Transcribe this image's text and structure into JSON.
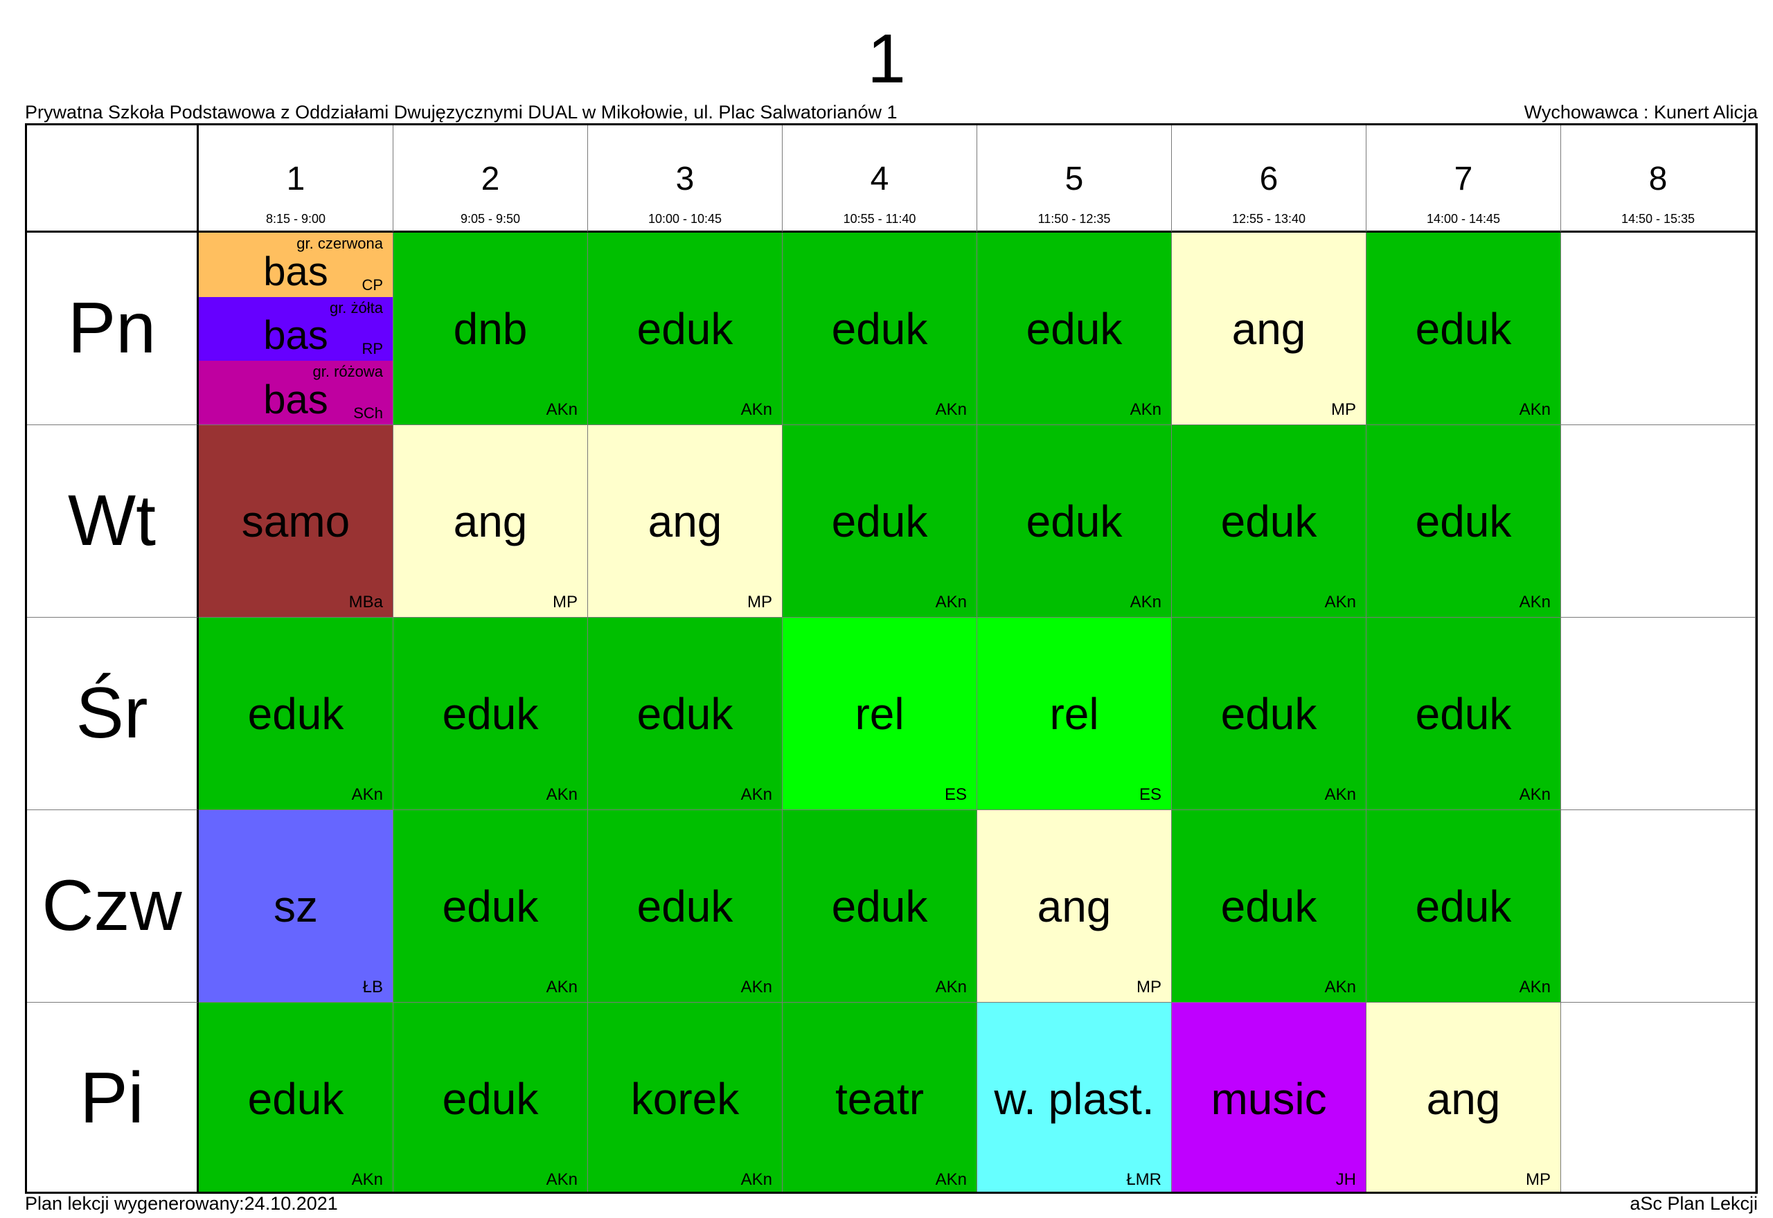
{
  "title": "1",
  "school": "Prywatna Szkoła Podstawowa z Oddziałami Dwujęzycznymi DUAL w Mikołowie, ul. Plac Salwatorianów 1",
  "teacher": "Wychowawca : Kunert Alicja",
  "footer_left": "Plan lekcji wygenerowany:24.10.2021",
  "footer_right": "aSc Plan Lekcji",
  "periods": [
    {
      "num": "1",
      "time": "8:15 - 9:00"
    },
    {
      "num": "2",
      "time": "9:05 - 9:50"
    },
    {
      "num": "3",
      "time": "10:00 - 10:45"
    },
    {
      "num": "4",
      "time": "10:55 - 11:40"
    },
    {
      "num": "5",
      "time": "11:50 - 12:35"
    },
    {
      "num": "6",
      "time": "12:55 - 13:40"
    },
    {
      "num": "7",
      "time": "14:00 - 14:45"
    },
    {
      "num": "8",
      "time": "14:50 - 15:35"
    }
  ],
  "days": [
    {
      "name": "Pn",
      "lessons": [
        {
          "split": [
            {
              "subject": "bas",
              "group": "gr. czerwona",
              "teacher": "CP",
              "color": "#FFBF5F"
            },
            {
              "subject": "bas",
              "group": "gr. żółta",
              "teacher": "RP",
              "color": "#6600FF"
            },
            {
              "subject": "bas",
              "group": "gr. różowa",
              "teacher": "SCh",
              "color": "#BF00A0"
            }
          ]
        },
        {
          "subject": "dnb",
          "teacher": "AKn",
          "color": "#00BF00"
        },
        {
          "subject": "eduk",
          "teacher": "AKn",
          "color": "#00BF00"
        },
        {
          "subject": "eduk",
          "teacher": "AKn",
          "color": "#00BF00"
        },
        {
          "subject": "eduk",
          "teacher": "AKn",
          "color": "#00BF00"
        },
        {
          "subject": "ang",
          "teacher": "MP",
          "color": "#FFFFCC"
        },
        {
          "subject": "eduk",
          "teacher": "AKn",
          "color": "#00BF00"
        },
        null
      ]
    },
    {
      "name": "Wt",
      "lessons": [
        {
          "subject": "samo",
          "teacher": "MBa",
          "color": "#993333"
        },
        {
          "subject": "ang",
          "teacher": "MP",
          "color": "#FFFFCC"
        },
        {
          "subject": "ang",
          "teacher": "MP",
          "color": "#FFFFCC"
        },
        {
          "subject": "eduk",
          "teacher": "AKn",
          "color": "#00BF00"
        },
        {
          "subject": "eduk",
          "teacher": "AKn",
          "color": "#00BF00"
        },
        {
          "subject": "eduk",
          "teacher": "AKn",
          "color": "#00BF00"
        },
        {
          "subject": "eduk",
          "teacher": "AKn",
          "color": "#00BF00"
        },
        null
      ]
    },
    {
      "name": "Śr",
      "lessons": [
        {
          "subject": "eduk",
          "teacher": "AKn",
          "color": "#00BF00"
        },
        {
          "subject": "eduk",
          "teacher": "AKn",
          "color": "#00BF00"
        },
        {
          "subject": "eduk",
          "teacher": "AKn",
          "color": "#00BF00"
        },
        {
          "subject": "rel",
          "teacher": "ES",
          "color": "#00FF00"
        },
        {
          "subject": "rel",
          "teacher": "ES",
          "color": "#00FF00"
        },
        {
          "subject": "eduk",
          "teacher": "AKn",
          "color": "#00BF00"
        },
        {
          "subject": "eduk",
          "teacher": "AKn",
          "color": "#00BF00"
        },
        null
      ]
    },
    {
      "name": "Czw",
      "lessons": [
        {
          "subject": "sz",
          "teacher": "ŁB",
          "color": "#6666FF"
        },
        {
          "subject": "eduk",
          "teacher": "AKn",
          "color": "#00BF00"
        },
        {
          "subject": "eduk",
          "teacher": "AKn",
          "color": "#00BF00"
        },
        {
          "subject": "eduk",
          "teacher": "AKn",
          "color": "#00BF00"
        },
        {
          "subject": "ang",
          "teacher": "MP",
          "color": "#FFFFCC"
        },
        {
          "subject": "eduk",
          "teacher": "AKn",
          "color": "#00BF00"
        },
        {
          "subject": "eduk",
          "teacher": "AKn",
          "color": "#00BF00"
        },
        null
      ]
    },
    {
      "name": "Pi",
      "lessons": [
        {
          "subject": "eduk",
          "teacher": "AKn",
          "color": "#00BF00"
        },
        {
          "subject": "eduk",
          "teacher": "AKn",
          "color": "#00BF00"
        },
        {
          "subject": "korek",
          "teacher": "AKn",
          "color": "#00BF00"
        },
        {
          "subject": "teatr",
          "teacher": "AKn",
          "color": "#00BF00"
        },
        {
          "subject": "w. plast.",
          "teacher": "ŁMR",
          "color": "#66FFFF"
        },
        {
          "subject": "music",
          "teacher": "JH",
          "color": "#BF00FF"
        },
        {
          "subject": "ang",
          "teacher": "MP",
          "color": "#FFFFCC"
        },
        null
      ]
    }
  ]
}
